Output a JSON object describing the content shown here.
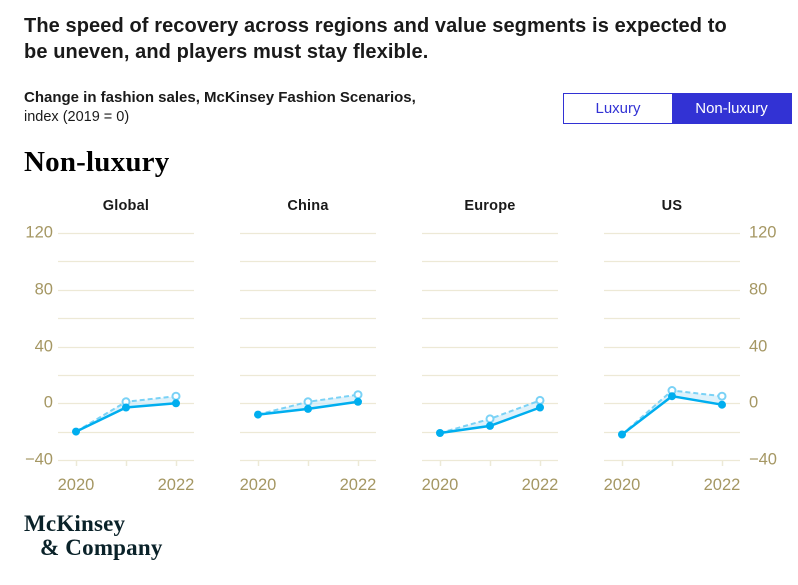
{
  "header": {
    "title": "The speed of recovery across regions and value segments is expected to be uneven, and players must stay flexible.",
    "subtitle_bold": "Change in fashion sales, McKinsey Fashion Scenarios,",
    "subtitle_unit": "index (2019 = 0)"
  },
  "toggle": {
    "options": [
      {
        "label": "Luxury",
        "active": false
      },
      {
        "label": "Non-luxury",
        "active": true
      }
    ]
  },
  "section": {
    "heading": "Non-luxury"
  },
  "footer": {
    "logo_line1": "McKinsey",
    "logo_line2": "& Company"
  },
  "colors": {
    "blue": "#3232d4",
    "tan": "#a59763",
    "grid": "#ede9d6",
    "line": "#00aeef",
    "line_light": "#7ad2f6",
    "fill": "#c9eaf9",
    "text": "#1a1a1a"
  },
  "chart_data": {
    "type": "line",
    "title": "Change in fashion sales, McKinsey Fashion Scenarios, index (2019 = 0)",
    "segment_shown": "Non-luxury",
    "x": [
      2020,
      2021,
      2022
    ],
    "x_ticks": [
      {
        "value": 2020,
        "label": "2020"
      },
      {
        "value": 2021,
        "label": ""
      },
      {
        "value": 2022,
        "label": "2022"
      }
    ],
    "ylim": [
      -40,
      120
    ],
    "y_grid_step": 20,
    "y_ticks": [
      {
        "value": 120,
        "label": "120"
      },
      {
        "value": 80,
        "label": "80"
      },
      {
        "value": 40,
        "label": "40"
      },
      {
        "value": 0,
        "label": "0"
      },
      {
        "value": -40,
        "label": "−40"
      }
    ],
    "grid": true,
    "legend": "none",
    "panels": [
      {
        "title": "Global",
        "series": [
          {
            "id": "scenario-solid",
            "style": "solid",
            "values": [
              -20,
              -3,
              0
            ]
          },
          {
            "id": "scenario-dashed",
            "style": "dashed",
            "values": [
              -20,
              1,
              5
            ]
          }
        ]
      },
      {
        "title": "China",
        "series": [
          {
            "id": "scenario-solid",
            "style": "solid",
            "values": [
              -8,
              -4,
              1
            ]
          },
          {
            "id": "scenario-dashed",
            "style": "dashed",
            "values": [
              -8,
              1,
              6
            ]
          }
        ]
      },
      {
        "title": "Europe",
        "series": [
          {
            "id": "scenario-solid",
            "style": "solid",
            "values": [
              -21,
              -16,
              -3
            ]
          },
          {
            "id": "scenario-dashed",
            "style": "dashed",
            "values": [
              -21,
              -11,
              2
            ]
          }
        ]
      },
      {
        "title": "US",
        "series": [
          {
            "id": "scenario-solid",
            "style": "solid",
            "values": [
              -22,
              5,
              -1
            ]
          },
          {
            "id": "scenario-dashed",
            "style": "dashed",
            "values": [
              -22,
              9,
              5
            ]
          }
        ]
      }
    ]
  }
}
